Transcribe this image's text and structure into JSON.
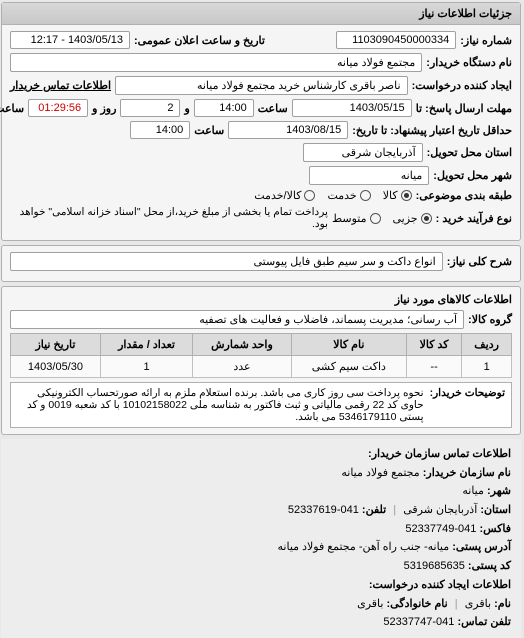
{
  "panel_title": "جزئیات اطلاعات نیاز",
  "fields": {
    "req_no_lbl": "شماره نیاز:",
    "req_no": "1103090450000334",
    "pub_dt_lbl": "تاریخ و ساعت اعلان عمومی:",
    "pub_dt": "1403/05/13 - 12:17",
    "buyer_org_lbl": "نام دستگاه خریدار:",
    "buyer_org": "مجتمع فولاد میانه",
    "creator_lbl": "ایجاد کننده درخواست:",
    "creator": "ناصر باقری کارشناس خرید مجتمع فولاد میانه",
    "buyer_contact_lbl": "اطلاعات تماس خریدار",
    "deadline_lbl": "مهلت ارسال پاسخ: تا",
    "deadline_date": "1403/05/15",
    "time_lbl": "ساعت",
    "deadline_time": "14:00",
    "remain_lbl": "و",
    "remain_days": "2",
    "remain_day_lbl": "روز و",
    "remain_clock": "01:29:56",
    "remain_suffix": "ساعت باقی مانده",
    "valid_lbl": "حداقل تاریخ اعتبار پیشنهاد: تا تاریخ:",
    "valid_date": "1403/08/15",
    "valid_time": "14:00",
    "province_lbl": "استان محل تحویل:",
    "province": "آذربایجان شرقی",
    "city_lbl": "شهر محل تحویل:",
    "city": "میانه",
    "qty_type_lbl": "طبقه بندی موضوعی:",
    "qty_kala": "کالا",
    "qty_khadamat": "خدمت",
    "qty_both": "کالا/خدمت",
    "proc_type_lbl": "نوع فرآیند خرید :",
    "proc_jozi": "جزیی",
    "proc_motevaset": "متوسط",
    "proc_note": "پرداخت تمام یا بخشی از مبلغ خرید،از محل \"اسناد خزانه اسلامی\" خواهد بود.",
    "subject_lbl": "شرح کلی نیاز:",
    "subject": "انواع داکت و سر سیم طبق فایل پیوستی",
    "items_title": "اطلاعات کالاهای مورد نیاز",
    "group_lbl": "گروه کالا:",
    "group": "آب رسانی؛ مدیریت پسماند، فاضلاب و فعالیت های تصفیه",
    "explain_lbl": "توضیحات خریدار:",
    "explain": "نحوه پرداخت سی روز کاری می باشد. برنده استعلام ملزم به ارائه صورتحساب الکترونیکی حاوی کد 22 رقمی مالیاتی و ثبت فاکتور به شناسه ملی 10102158022 با کد شعبه 0019 و کد پستی 5346179110 می باشد."
  },
  "table": {
    "cols": [
      "ردیف",
      "کد کالا",
      "نام کالا",
      "واحد شمارش",
      "تعداد / مقدار",
      "تاریخ نیاز"
    ],
    "rows": [
      [
        "1",
        "--",
        "داکت سیم کشی",
        "عدد",
        "1",
        "1403/05/30"
      ]
    ]
  },
  "contact": {
    "title": "اطلاعات تماس سازمان خریدار:",
    "org_lbl": "نام سازمان خریدار:",
    "org": "مجتمع فولاد میانه",
    "city_lbl": "شهر:",
    "city": "میانه",
    "prov_lbl": "استان:",
    "prov": "آذربایجان شرقی",
    "tel_lbl": "تلفن:",
    "tel": "041-52337619",
    "fax_lbl": "فاکس:",
    "fax": "041-52337749",
    "addr_lbl": "آدرس پستی:",
    "addr": "میانه- جنب راه آهن- مجتمع فولاد میانه",
    "post_lbl": "کد پستی:",
    "post": "5319685635",
    "creator_title": "اطلاعات ایجاد کننده درخواست:",
    "name_lbl": "نام:",
    "name": "باقری",
    "fam_lbl": "نام خانوادگی:",
    "fam": "باقری",
    "ctel_lbl": "تلفن تماس:",
    "ctel": "041-52337747"
  }
}
